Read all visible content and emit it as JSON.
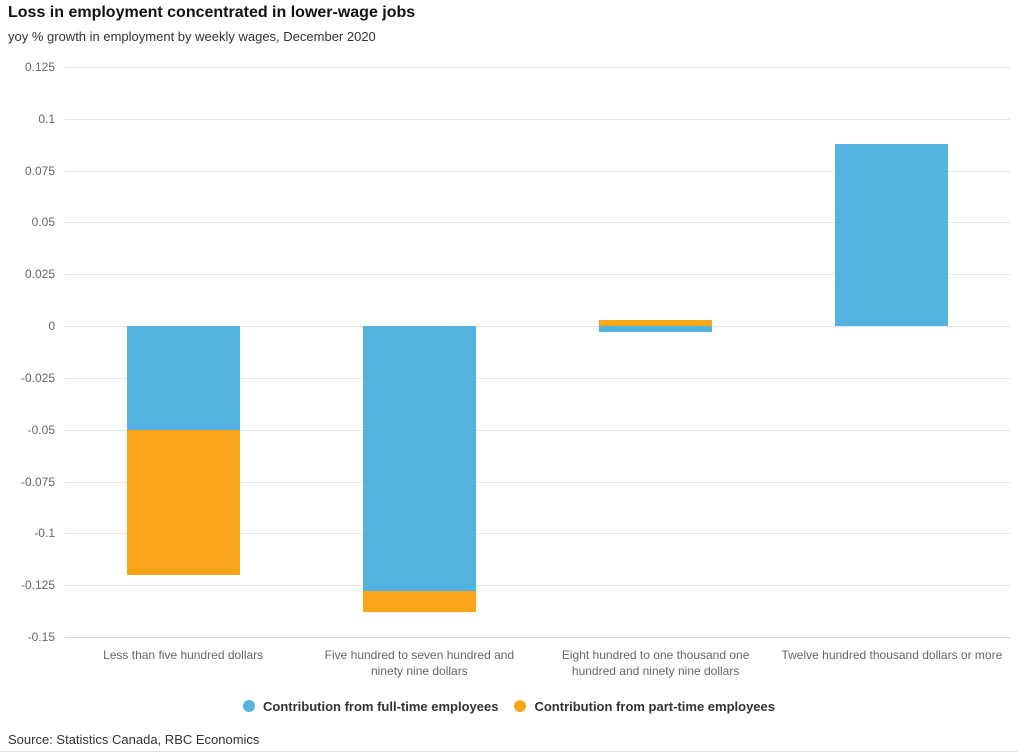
{
  "header": {
    "title": "Loss in employment concentrated in lower-wage jobs",
    "subtitle": "yoy % growth in employment by weekly wages, December 2020"
  },
  "chart_data": {
    "type": "bar",
    "stacked": true,
    "title": "Loss in employment concentrated in lower-wage jobs",
    "subtitle": "yoy % growth in employment by weekly wages, December 2020",
    "categories": [
      "Less than five hundred dollars",
      "Five hundred to seven hundred and\nninety nine dollars",
      "Eight hundred to one thousand one\nhundred and ninety nine dollars",
      "Twelve hundred thousand dollars or more"
    ],
    "series": [
      {
        "name": "Contribution from full-time employees",
        "color": "#54B4E1",
        "values": [
          -0.05,
          -0.128,
          -0.003,
          0.088
        ]
      },
      {
        "name": "Contribution from part-time employees",
        "color": "#FAA41A",
        "values": [
          -0.07,
          -0.01,
          0.003,
          0
        ]
      }
    ],
    "yticks": [
      {
        "value": 0.125,
        "label": "0.125"
      },
      {
        "value": 0.1,
        "label": "0.1"
      },
      {
        "value": 0.075,
        "label": "0.075"
      },
      {
        "value": 0.05,
        "label": "0.05"
      },
      {
        "value": 0.025,
        "label": "0.025"
      },
      {
        "value": 0,
        "label": "0"
      },
      {
        "value": -0.025,
        "label": "-0.025"
      },
      {
        "value": -0.05,
        "label": "-0.05"
      },
      {
        "value": -0.075,
        "label": "-0.075"
      },
      {
        "value": -0.1,
        "label": "-0.1"
      },
      {
        "value": -0.125,
        "label": "-0.125"
      },
      {
        "value": -0.15,
        "label": "-0.15"
      }
    ],
    "ylim": [
      -0.15,
      0.125
    ],
    "xlabel": "",
    "ylabel": "",
    "grid": true,
    "legend_position": "bottom"
  },
  "source": {
    "text": "Source: Statistics Canada, RBC Economics"
  },
  "colors": {
    "grid": "#e6e6e6",
    "axis_line": "#ccd6eb",
    "tick_label": "#666666",
    "legend_text": "#333333"
  }
}
